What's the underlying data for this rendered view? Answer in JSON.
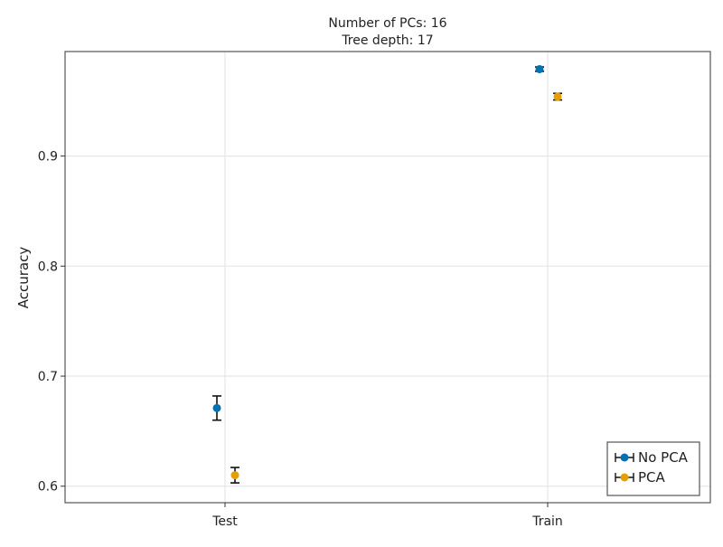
{
  "chart_data": {
    "type": "scatter",
    "title": [
      "Number of PCs: 16",
      "Tree depth: 17"
    ],
    "xlabel": "",
    "ylabel": "Accuracy",
    "categories": [
      "Test",
      "Train"
    ],
    "ylim": [
      0.585,
      0.995
    ],
    "yticks": [
      0.6,
      0.7,
      0.8,
      0.9
    ],
    "ytick_labels": [
      "0.6",
      "0.7",
      "0.8",
      "0.9"
    ],
    "grid": true,
    "legend_position": "bottom-right",
    "series": [
      {
        "name": "No PCA",
        "color": "#0072b2",
        "values": [
          0.671,
          0.979
        ],
        "error_low": [
          0.66,
          0.977
        ],
        "error_high": [
          0.682,
          0.981
        ]
      },
      {
        "name": "PCA",
        "color": "#e69f00",
        "values": [
          0.61,
          0.954
        ],
        "error_low": [
          0.603,
          0.951
        ],
        "error_high": [
          0.617,
          0.957
        ]
      }
    ]
  }
}
